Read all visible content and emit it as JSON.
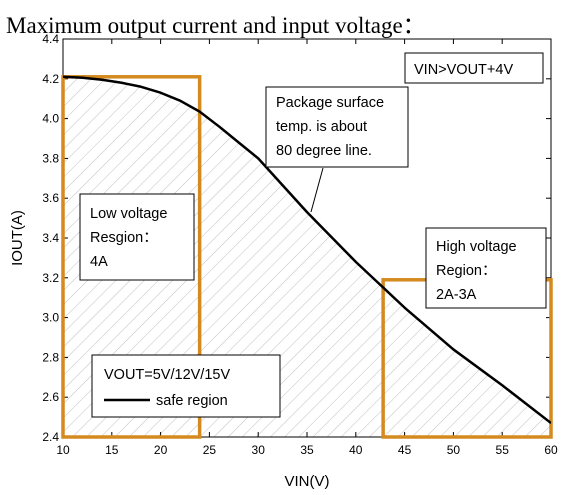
{
  "title": "Maximum output current and input voltage：",
  "chart_data": {
    "type": "line",
    "xlabel": "VIN(V)",
    "ylabel": "IOUT(A)",
    "xlim": [
      10,
      60
    ],
    "ylim": [
      2.4,
      4.4
    ],
    "x_ticks": [
      "10",
      "15",
      "20",
      "25",
      "30",
      "35",
      "40",
      "45",
      "50",
      "55",
      "60"
    ],
    "y_ticks": [
      "2.4",
      "2.6",
      "2.8",
      "3.0",
      "3.2",
      "3.4",
      "3.6",
      "3.8",
      "4.0",
      "4.2",
      "4.4"
    ],
    "grid": false,
    "series": [
      {
        "name": "safe region",
        "color": "#000000",
        "x": [
          10,
          12,
          14,
          16,
          18,
          20,
          22,
          24,
          26,
          28,
          30,
          35,
          40,
          45,
          50,
          55,
          60
        ],
        "y": [
          4.21,
          4.205,
          4.195,
          4.18,
          4.16,
          4.13,
          4.09,
          4.035,
          3.96,
          3.88,
          3.8,
          3.53,
          3.28,
          3.05,
          2.84,
          2.66,
          2.47
        ]
      }
    ],
    "regions": [
      {
        "x": [
          10,
          24
        ],
        "y": [
          2.4,
          4.21
        ],
        "color": "#D48A1E"
      },
      {
        "x": [
          42.8,
          60
        ],
        "y": [
          2.4,
          3.19
        ],
        "color": "#D48A1E"
      }
    ],
    "annotations": {
      "condition": "VIN>VOUT+4V",
      "package": [
        "Package surface",
        "temp. is about",
        "80 degree line."
      ],
      "low_voltage": [
        "Low voltage",
        "Resgion：",
        "4A"
      ],
      "high_voltage": [
        "High voltage",
        "Region：",
        "2A-3A"
      ],
      "legend_title": "VOUT=5V/12V/15V",
      "legend_entry": "safe region"
    }
  }
}
